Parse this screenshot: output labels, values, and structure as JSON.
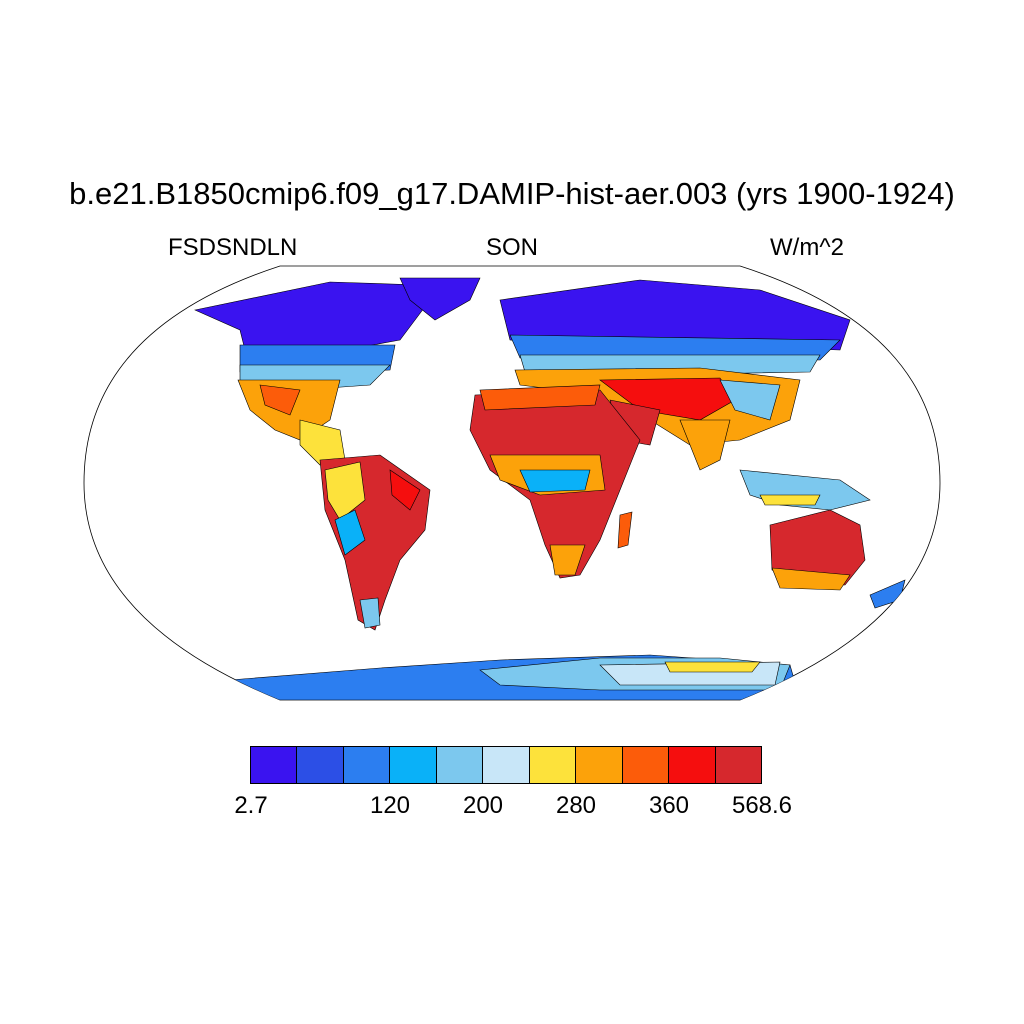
{
  "title": "b.e21.B1850cmip6.f09_g17.DAMIP-hist-aer.003 (yrs 1900-1924)",
  "subtitle_left": "FSDSNDLN",
  "subtitle_center": "SON",
  "subtitle_right": "W/m^2",
  "projection": "Robinson (global)",
  "colorbar": {
    "colors": [
      "#3a13f0",
      "#2c4fe6",
      "#2c7ef0",
      "#0ab1f8",
      "#7cc8ee",
      "#c8e6f8",
      "#fde23b",
      "#fca20a",
      "#fc5c0a",
      "#f50e0e",
      "#d6282d"
    ],
    "labels": [
      "2.7",
      "120",
      "200",
      "280",
      "360",
      "568.6"
    ]
  }
}
